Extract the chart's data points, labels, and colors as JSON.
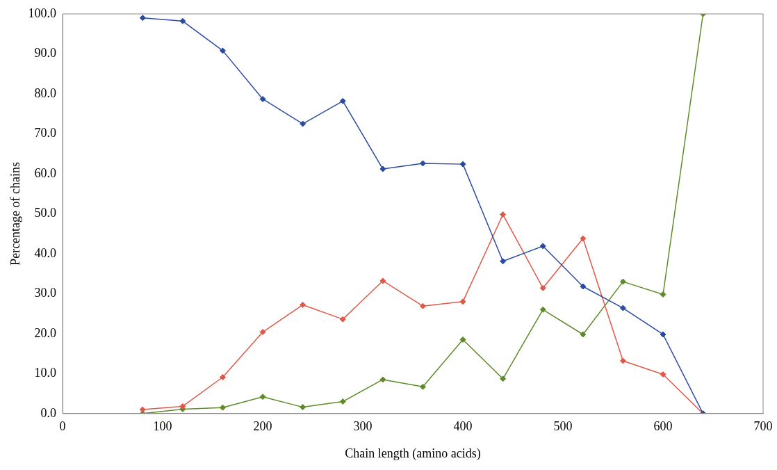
{
  "chart_data": {
    "type": "line",
    "xlabel": "Chain length (amino acids)",
    "ylabel": "Percentage of chains",
    "x": [
      80,
      120,
      160,
      200,
      240,
      280,
      320,
      360,
      400,
      440,
      480,
      520,
      560,
      600,
      640
    ],
    "series": [
      {
        "color": "#2b4ba0",
        "values": [
          99,
          98.2,
          90.8,
          78.7,
          72.5,
          78.2,
          61.2,
          62.6,
          62.4,
          38.1,
          41.9,
          31.8,
          26.4,
          19.8,
          0
        ]
      },
      {
        "color": "#e0584a",
        "values": [
          1,
          1.8,
          9.1,
          20.4,
          27.2,
          23.6,
          33.2,
          26.9,
          28,
          49.8,
          31.4,
          43.8,
          13.2,
          9.8,
          0
        ]
      },
      {
        "color": "#5f8a2a",
        "values": [
          0,
          1.1,
          1.5,
          4.2,
          1.6,
          3,
          8.5,
          6.7,
          18.5,
          8.7,
          26,
          19.8,
          33,
          29.8,
          100
        ]
      }
    ],
    "xlim": [
      0,
      700
    ],
    "xticks": [
      0,
      100,
      200,
      300,
      400,
      500,
      600,
      700
    ],
    "ylim": [
      0,
      100
    ],
    "yticks": [
      {
        "value": 0,
        "label": "0.0"
      },
      {
        "value": 10,
        "label": "10.0"
      },
      {
        "value": 20,
        "label": "20.0"
      },
      {
        "value": 30,
        "label": "30.0"
      },
      {
        "value": 40,
        "label": "40.0"
      },
      {
        "value": 50,
        "label": "50.0"
      },
      {
        "value": 60,
        "label": "60.0"
      },
      {
        "value": 70,
        "label": "70.0"
      },
      {
        "value": 80,
        "label": "80.0"
      },
      {
        "value": 90,
        "label": "90.0"
      },
      {
        "value": 100,
        "label": "100.0"
      }
    ],
    "grid": false,
    "legend": false,
    "marker": "diamond",
    "line_style": "solid"
  }
}
